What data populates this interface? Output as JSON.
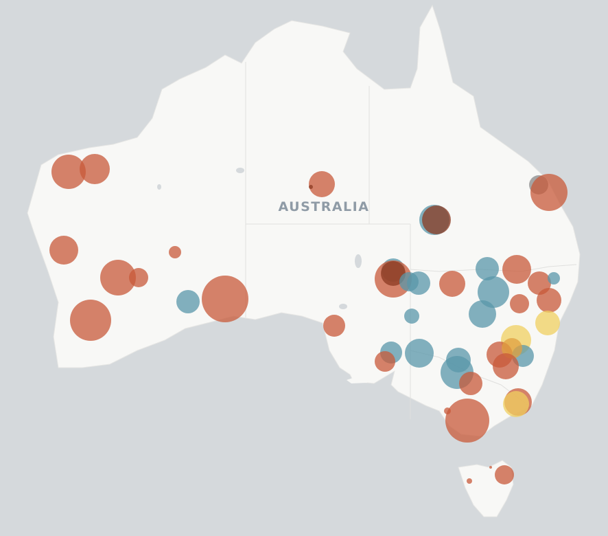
{
  "map": {
    "country_label": "AUSTRALIA",
    "colors": {
      "ocean": "#d5d9dc",
      "land": "#f8f8f6",
      "border": "#e2e2e0",
      "orange": "#c85a3a",
      "blue": "#5a97aa",
      "yellow": "#f0d060",
      "grey": "#8a8a8a",
      "dark_orange": "#8b3a22"
    },
    "marker_groups": [
      "orange",
      "blue",
      "yellow",
      "grey"
    ]
  }
}
